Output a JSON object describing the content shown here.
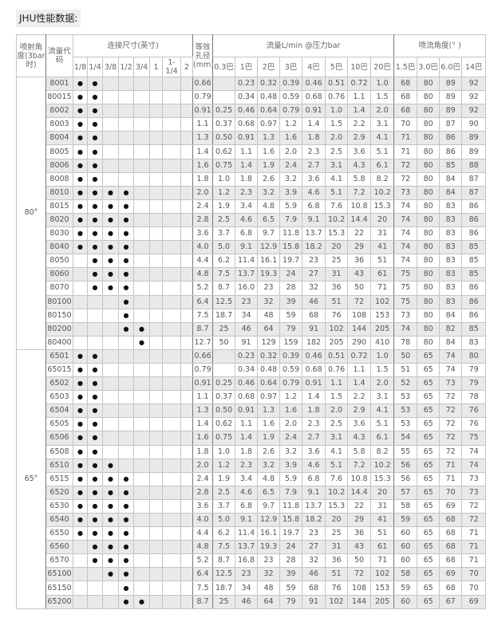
{
  "title": "JHU性能数据:",
  "dot_symbol": "●",
  "headers": {
    "spray_angle": "喷射角度(3bar时)",
    "flow_code": "流量代码",
    "connection": "连接尺寸(英寸)",
    "connection_sizes": [
      "1/8",
      "1/4",
      "3/8",
      "1/2",
      "3/4",
      "1",
      "1-1/4",
      "2"
    ],
    "orifice": "等效孔径(mm)",
    "flow": "流量L/min @压力bar",
    "flow_pressures": [
      "0.3巴",
      "1巴",
      "2巴",
      "3巴",
      "4巴",
      "5巴",
      "10巴",
      "20巴"
    ],
    "angle": "喷流角度(° )",
    "angle_pressures": [
      "1.5巴",
      "3.0巴",
      "6.0巴",
      "14巴"
    ]
  },
  "sections": [
    {
      "angle": "80°",
      "rows": [
        {
          "code": "8001",
          "conn": "11000000",
          "orifice": "0.66",
          "flow": [
            "",
            "0.23",
            "0.32",
            "0.39",
            "0.46",
            "0.51",
            "0.72",
            "1.0"
          ],
          "angles": [
            "68",
            "80",
            "89",
            "92"
          ]
        },
        {
          "code": "80015",
          "conn": "11000000",
          "orifice": "0.79",
          "flow": [
            "",
            "0.34",
            "0.48",
            "0.59",
            "0.68",
            "0.76",
            "1.1",
            "1.5"
          ],
          "angles": [
            "68",
            "80",
            "89",
            "92"
          ]
        },
        {
          "code": "8002",
          "conn": "11000000",
          "orifice": "0.91",
          "flow": [
            "0.25",
            "0.46",
            "0.64",
            "0.79",
            "0.91",
            "1.0",
            "1.4",
            "2.0"
          ],
          "angles": [
            "68",
            "80",
            "89",
            "92"
          ]
        },
        {
          "code": "8003",
          "conn": "11000000",
          "orifice": "1.1",
          "flow": [
            "0.37",
            "0.68",
            "0.97",
            "1.2",
            "1.4",
            "1.5",
            "2.2",
            "3.1"
          ],
          "angles": [
            "70",
            "80",
            "87",
            "90"
          ]
        },
        {
          "code": "8004",
          "conn": "11000000",
          "orifice": "1.3",
          "flow": [
            "0.50",
            "0.91",
            "1.3",
            "1.6",
            "1.8",
            "2.0",
            "2.9",
            "4.1"
          ],
          "angles": [
            "71",
            "80",
            "86",
            "89"
          ]
        },
        {
          "code": "8005",
          "conn": "11000000",
          "orifice": "1.4",
          "flow": [
            "0.62",
            "1.1",
            "1.6",
            "2.0",
            "2.3",
            "2.5",
            "3.6",
            "5.1"
          ],
          "angles": [
            "71",
            "80",
            "86",
            "89"
          ]
        },
        {
          "code": "8006",
          "conn": "11000000",
          "orifice": "1.6",
          "flow": [
            "0.75",
            "1.4",
            "1.9",
            "2.4",
            "2.7",
            "3.1",
            "4.3",
            "6.1"
          ],
          "angles": [
            "72",
            "80",
            "85",
            "88"
          ]
        },
        {
          "code": "8008",
          "conn": "11000000",
          "orifice": "1.8",
          "flow": [
            "1.0",
            "1.8",
            "2.6",
            "3.2",
            "3.6",
            "4.1",
            "5.8",
            "8.2"
          ],
          "angles": [
            "72",
            "80",
            "84",
            "87"
          ]
        },
        {
          "code": "8010",
          "conn": "11110000",
          "orifice": "2.0",
          "flow": [
            "1.2",
            "2.3",
            "3.2",
            "3.9",
            "4.6",
            "5.1",
            "7.2",
            "10.2"
          ],
          "angles": [
            "73",
            "80",
            "84",
            "87"
          ]
        },
        {
          "code": "8015",
          "conn": "11110000",
          "orifice": "2.4",
          "flow": [
            "1.9",
            "3.4",
            "4.8",
            "5.9",
            "6.8",
            "7.6",
            "10.8",
            "15.3"
          ],
          "angles": [
            "74",
            "80",
            "83",
            "86"
          ]
        },
        {
          "code": "8020",
          "conn": "11110000",
          "orifice": "2.8",
          "flow": [
            "2.5",
            "4.6",
            "6.5",
            "7.9",
            "9.1",
            "10.2",
            "14.4",
            "20"
          ],
          "angles": [
            "74",
            "80",
            "83",
            "86"
          ]
        },
        {
          "code": "8030",
          "conn": "11110000",
          "orifice": "3.6",
          "flow": [
            "3.7",
            "6.8",
            "9.7",
            "11.8",
            "13.7",
            "15.3",
            "22",
            "31"
          ],
          "angles": [
            "74",
            "80",
            "83",
            "86"
          ]
        },
        {
          "code": "8040",
          "conn": "11110000",
          "orifice": "4.0",
          "flow": [
            "5.0",
            "9.1",
            "12.9",
            "15.8",
            "18.2",
            "20",
            "29",
            "41"
          ],
          "angles": [
            "74",
            "80",
            "83",
            "85"
          ]
        },
        {
          "code": "8050",
          "conn": "01110000",
          "orifice": "4.4",
          "flow": [
            "6.2",
            "11.4",
            "16.1",
            "19.7",
            "23",
            "25",
            "36",
            "51"
          ],
          "angles": [
            "74",
            "80",
            "83",
            "85"
          ]
        },
        {
          "code": "8060",
          "conn": "01110000",
          "orifice": "4.8",
          "flow": [
            "7.5",
            "13.7",
            "19.3",
            "24",
            "27",
            "31",
            "43",
            "61"
          ],
          "angles": [
            "75",
            "80",
            "83",
            "85"
          ]
        },
        {
          "code": "8070",
          "conn": "01110000",
          "orifice": "5.2",
          "flow": [
            "8.7",
            "16.0",
            "23",
            "28",
            "32",
            "36",
            "50",
            "71"
          ],
          "angles": [
            "75",
            "80",
            "83",
            "86"
          ]
        },
        {
          "code": "80100",
          "conn": "00010000",
          "orifice": "6.4",
          "flow": [
            "12.5",
            "23",
            "32",
            "39",
            "46",
            "51",
            "72",
            "102"
          ],
          "angles": [
            "75",
            "80",
            "83",
            "86"
          ]
        },
        {
          "code": "80150",
          "conn": "00010000",
          "orifice": "7.5",
          "flow": [
            "18.7",
            "34",
            "48",
            "59",
            "68",
            "76",
            "108",
            "153"
          ],
          "angles": [
            "73",
            "80",
            "84",
            "86"
          ]
        },
        {
          "code": "80200",
          "conn": "00011000",
          "orifice": "8.7",
          "flow": [
            "25",
            "46",
            "64",
            "79",
            "91",
            "102",
            "144",
            "205"
          ],
          "angles": [
            "74",
            "80",
            "82",
            "85"
          ]
        },
        {
          "code": "80400",
          "conn": "00001000",
          "orifice": "12.7",
          "flow": [
            "50",
            "91",
            "129",
            "159",
            "182",
            "205",
            "290",
            "410"
          ],
          "angles": [
            "78",
            "80",
            "84",
            "83"
          ]
        }
      ]
    },
    {
      "angle": "65°",
      "rows": [
        {
          "code": "6501",
          "conn": "11000000",
          "orifice": "0.66",
          "flow": [
            "",
            "0.23",
            "0.32",
            "0.39",
            "0.46",
            "0.51",
            "0.72",
            "1.0"
          ],
          "angles": [
            "50",
            "65",
            "74",
            "80"
          ]
        },
        {
          "code": "65015",
          "conn": "11000000",
          "orifice": "0.79",
          "flow": [
            "",
            "0.34",
            "0.48",
            "0.59",
            "0.68",
            "0.76",
            "1.1",
            "1.5"
          ],
          "angles": [
            "51",
            "65",
            "74",
            "79"
          ]
        },
        {
          "code": "6502",
          "conn": "11000000",
          "orifice": "0.91",
          "flow": [
            "0.25",
            "0.46",
            "0.64",
            "0.79",
            "0.91",
            "1.1",
            "1.4",
            "2.0"
          ],
          "angles": [
            "52",
            "65",
            "73",
            "79"
          ]
        },
        {
          "code": "6503",
          "conn": "11000000",
          "orifice": "1.1",
          "flow": [
            "0.37",
            "0.68",
            "0.97",
            "1.2",
            "1.4",
            "1.5",
            "2.2",
            "3.1"
          ],
          "angles": [
            "53",
            "65",
            "72",
            "78"
          ]
        },
        {
          "code": "6504",
          "conn": "11000000",
          "orifice": "1.3",
          "flow": [
            "0.50",
            "0.91",
            "1.3",
            "1.6",
            "1.8",
            "2.0",
            "2.9",
            "4.1"
          ],
          "angles": [
            "53",
            "65",
            "72",
            "76"
          ]
        },
        {
          "code": "6505",
          "conn": "11000000",
          "orifice": "1.4",
          "flow": [
            "0.62",
            "1.1",
            "1.6",
            "2.0",
            "2.3",
            "2.5",
            "3.6",
            "5.1"
          ],
          "angles": [
            "53",
            "65",
            "72",
            "76"
          ]
        },
        {
          "code": "6506",
          "conn": "11000000",
          "orifice": "1.6",
          "flow": [
            "0.75",
            "1.4",
            "1.9",
            "2.4",
            "2.7",
            "3.1",
            "4.3",
            "6.1"
          ],
          "angles": [
            "54",
            "65",
            "72",
            "75"
          ]
        },
        {
          "code": "6508",
          "conn": "11000000",
          "orifice": "1.8",
          "flow": [
            "1.0",
            "1.8",
            "2.6",
            "3.2",
            "3.6",
            "4.1",
            "5.8",
            "8.2"
          ],
          "angles": [
            "55",
            "65",
            "72",
            "74"
          ]
        },
        {
          "code": "6510",
          "conn": "11100000",
          "orifice": "2.0",
          "flow": [
            "1.2",
            "2.3",
            "3.2",
            "3.9",
            "4.6",
            "5.1",
            "7.2",
            "10.2"
          ],
          "angles": [
            "56",
            "65",
            "71",
            "74"
          ]
        },
        {
          "code": "6515",
          "conn": "11110000",
          "orifice": "2.4",
          "flow": [
            "1.9",
            "3.4",
            "4.8",
            "5.9",
            "6.8",
            "7.6",
            "10.8",
            "15.3"
          ],
          "angles": [
            "56",
            "65",
            "71",
            "73"
          ]
        },
        {
          "code": "6520",
          "conn": "11110000",
          "orifice": "2.8",
          "flow": [
            "2.5",
            "4.6",
            "6.5",
            "7.9",
            "9.1",
            "10.2",
            "14.4",
            "20"
          ],
          "angles": [
            "57",
            "65",
            "70",
            "73"
          ]
        },
        {
          "code": "6530",
          "conn": "11110000",
          "orifice": "3.6",
          "flow": [
            "3.7",
            "6.8",
            "9.7",
            "11.8",
            "13.7",
            "15.3",
            "22",
            "31"
          ],
          "angles": [
            "58",
            "65",
            "69",
            "72"
          ]
        },
        {
          "code": "6540",
          "conn": "11110000",
          "orifice": "4.0",
          "flow": [
            "5.0",
            "9.1",
            "12.9",
            "15.8",
            "18.2",
            "20",
            "29",
            "41"
          ],
          "angles": [
            "59",
            "65",
            "68",
            "72"
          ]
        },
        {
          "code": "6550",
          "conn": "11110000",
          "orifice": "4.4",
          "flow": [
            "6.2",
            "11.4",
            "16.1",
            "19.7",
            "23",
            "25",
            "36",
            "51"
          ],
          "angles": [
            "60",
            "65",
            "68",
            "71"
          ]
        },
        {
          "code": "6560",
          "conn": "01110000",
          "orifice": "4.8",
          "flow": [
            "7.5",
            "13.7",
            "19.3",
            "24",
            "27",
            "31",
            "43",
            "61"
          ],
          "angles": [
            "60",
            "65",
            "68",
            "71"
          ]
        },
        {
          "code": "6570",
          "conn": "01110000",
          "orifice": "5.2",
          "flow": [
            "8.7",
            "16.8",
            "23",
            "28",
            "32",
            "36",
            "50",
            "71"
          ],
          "angles": [
            "60",
            "65",
            "68",
            "71"
          ]
        },
        {
          "code": "65100",
          "conn": "00110000",
          "orifice": "6.4",
          "flow": [
            "12.5",
            "23",
            "32",
            "39",
            "46",
            "51",
            "72",
            "102"
          ],
          "angles": [
            "58",
            "65",
            "69",
            "70"
          ]
        },
        {
          "code": "65150",
          "conn": "00010000",
          "orifice": "7.5",
          "flow": [
            "18.7",
            "34",
            "48",
            "59",
            "68",
            "76",
            "108",
            "153"
          ],
          "angles": [
            "59",
            "65",
            "68",
            "70"
          ]
        },
        {
          "code": "65200",
          "conn": "00011000",
          "orifice": "8.7",
          "flow": [
            "25",
            "46",
            "64",
            "79",
            "91",
            "102",
            "144",
            "205"
          ],
          "angles": [
            "60",
            "65",
            "67",
            "69"
          ]
        }
      ]
    }
  ]
}
